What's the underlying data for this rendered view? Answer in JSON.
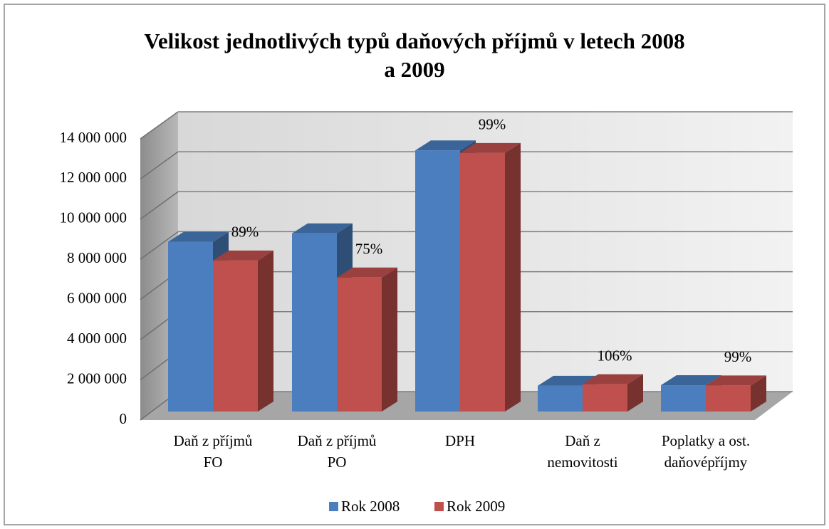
{
  "chart_data": {
    "type": "bar3d",
    "title": "Velikost jednotlivých typů daňových příjmů v letech 2008\na 2009",
    "categories": [
      "Daň z příjmů\nFO",
      "Daň z příjmů\nPO",
      "DPH",
      "Daň z\nnemovitosti",
      "Poplatky a ost.\ndaňovépříjmy"
    ],
    "series": [
      {
        "name": "Rok 2008",
        "color": "#4a7ebf",
        "values": [
          8450000,
          8870000,
          13000000,
          1280000,
          1310000
        ]
      },
      {
        "name": "Rok 2009",
        "color": "#c0504d",
        "values": [
          7520000,
          6670000,
          12870000,
          1360000,
          1300000
        ]
      }
    ],
    "annotations": [
      "89%",
      "75%",
      "99%",
      "106%",
      "99%"
    ],
    "ylim": [
      0,
      14000000
    ],
    "yticks": [
      0,
      {
        "value": 2000000,
        "label": "2 000 000"
      },
      {
        "value": 4000000,
        "label": "4 000 000"
      },
      {
        "value": 6000000,
        "label": "6 000 000"
      },
      {
        "value": 8000000,
        "label": "8 000 000"
      },
      {
        "value": 10000000,
        "label": "10 000 000"
      },
      {
        "value": 12000000,
        "label": "12 000 000"
      },
      {
        "value": 14000000,
        "label": "14 000 000"
      }
    ],
    "grid": true,
    "legend": "bottom"
  }
}
